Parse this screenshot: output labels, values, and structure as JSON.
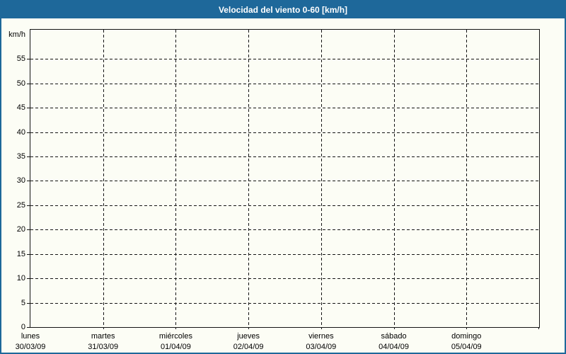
{
  "window": {
    "title": "Velocidad del viento 0-60 [km/h]"
  },
  "colors": {
    "titlebar_background": "#1e689a",
    "titlebar_text": "#ffffff",
    "frame_border": "#1e689a",
    "page_background": "#fcfdf5",
    "axis_and_grid": "#141414",
    "label_text": "#000000"
  },
  "chart_data": {
    "type": "line",
    "title": "Velocidad del viento 0-60 [km/h]",
    "ylabel": "km/h",
    "ylim": [
      0,
      61
    ],
    "y_ticks": [
      0,
      5,
      10,
      15,
      20,
      25,
      30,
      35,
      40,
      45,
      50,
      55
    ],
    "y_unit_label_position": 60,
    "grid": "dashed",
    "legend_position": "none",
    "x_categories": [
      {
        "day": "lunes",
        "date": "30/03/09"
      },
      {
        "day": "martes",
        "date": "31/03/09"
      },
      {
        "day": "miércoles",
        "date": "01/04/09"
      },
      {
        "day": "jueves",
        "date": "02/04/09"
      },
      {
        "day": "viernes",
        "date": "03/04/09"
      },
      {
        "day": "sábado",
        "date": "04/04/09"
      },
      {
        "day": "domingo",
        "date": "05/04/09"
      }
    ],
    "series": []
  }
}
